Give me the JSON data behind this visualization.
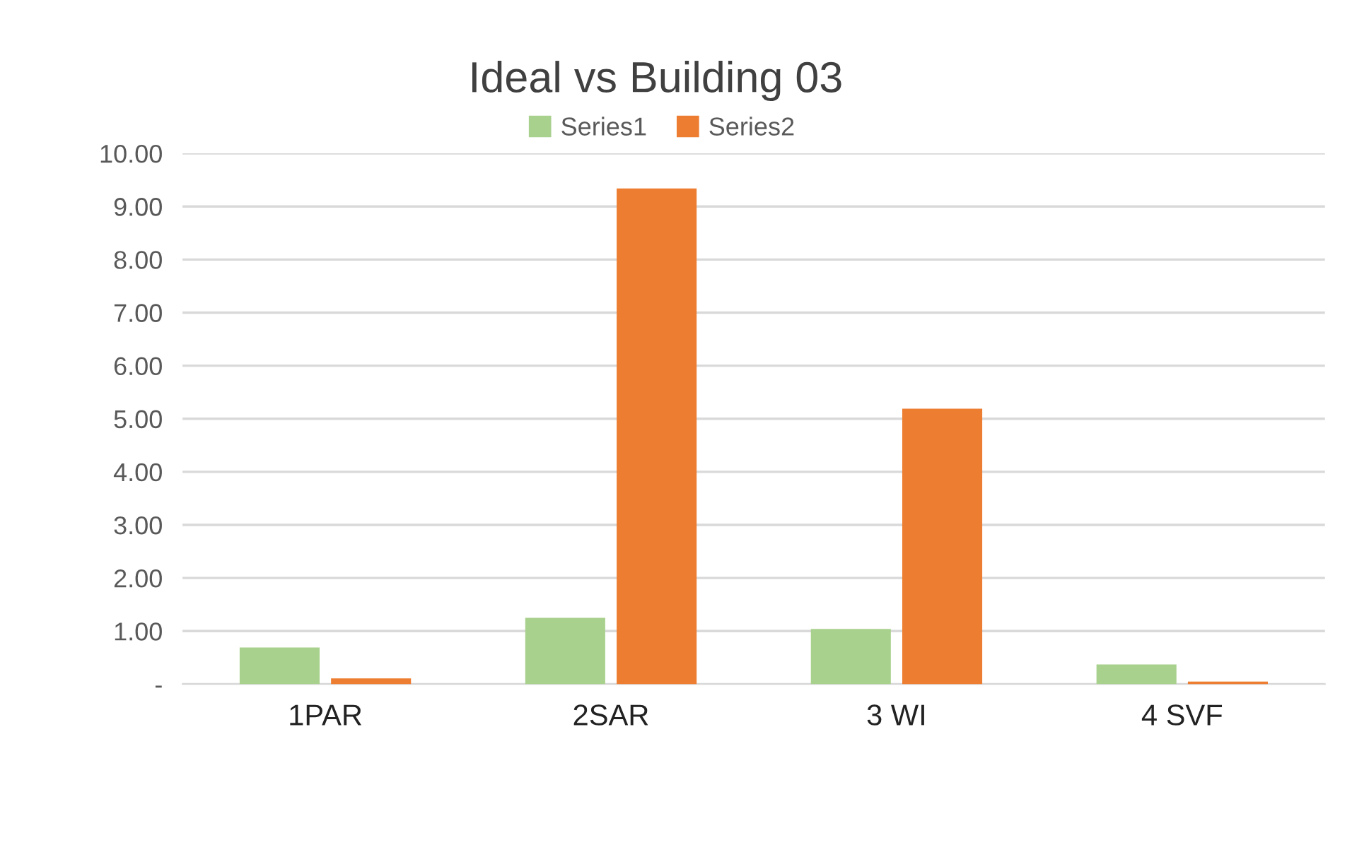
{
  "chart_data": {
    "type": "bar",
    "title": "Ideal vs Building 03",
    "categories": [
      "1PAR",
      "2SAR",
      "3 WI",
      "4 SVF"
    ],
    "series": [
      {
        "name": "Series1",
        "color": "#a9d18e",
        "values": [
          0.69,
          1.25,
          1.04,
          0.37
        ]
      },
      {
        "name": "Series2",
        "color": "#ed7d31",
        "values": [
          0.11,
          9.34,
          5.19,
          0.05
        ]
      }
    ],
    "ylim": [
      0,
      10
    ],
    "yticks": [
      {
        "value": 0,
        "label": "-"
      },
      {
        "value": 1,
        "label": "1.00"
      },
      {
        "value": 2,
        "label": "2.00"
      },
      {
        "value": 3,
        "label": "3.00"
      },
      {
        "value": 4,
        "label": "4.00"
      },
      {
        "value": 5,
        "label": "5.00"
      },
      {
        "value": 6,
        "label": "6.00"
      },
      {
        "value": 7,
        "label": "7.00"
      },
      {
        "value": 8,
        "label": "8.00"
      },
      {
        "value": 9,
        "label": "9.00"
      },
      {
        "value": 10,
        "label": "10.00"
      }
    ],
    "grid": "y",
    "legend": "top"
  }
}
